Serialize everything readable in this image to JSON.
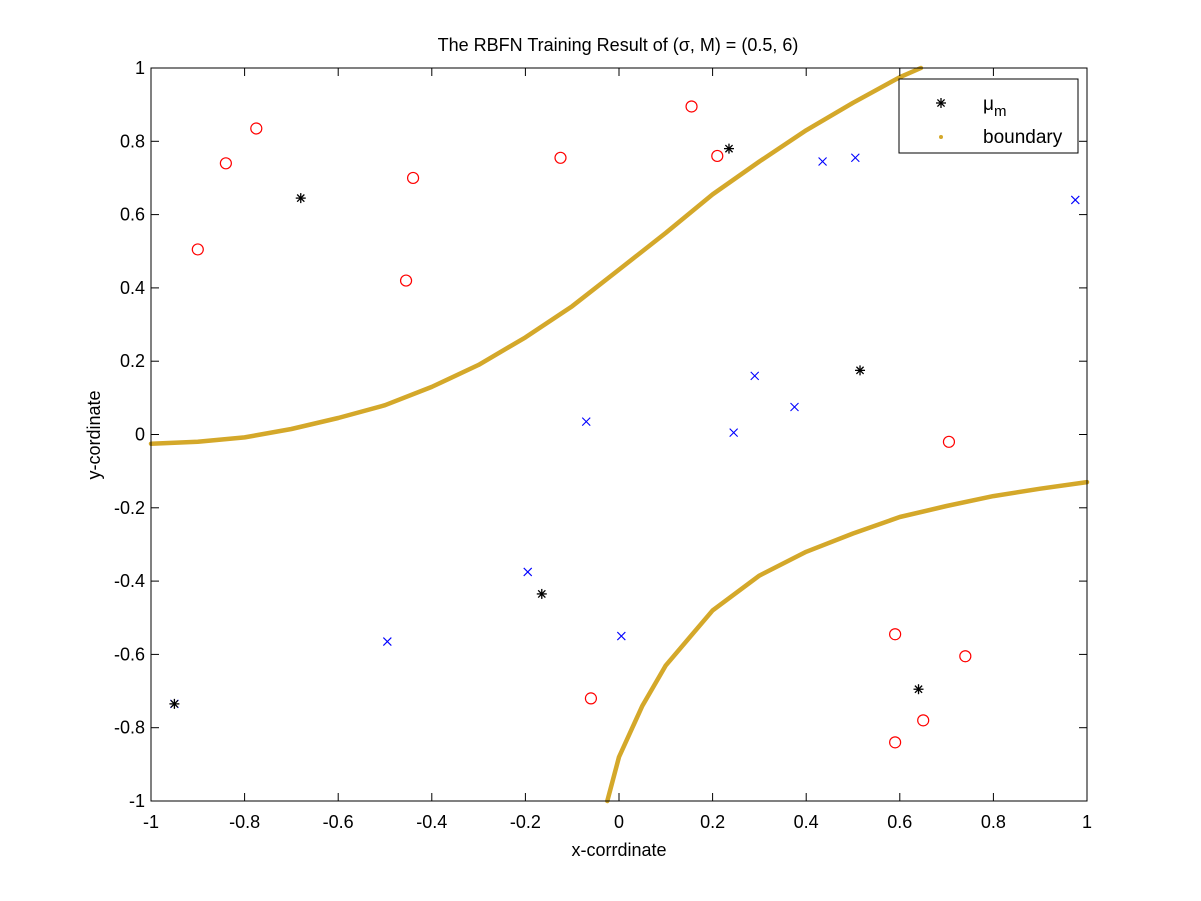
{
  "chart_data": {
    "type": "scatter",
    "title": "The RBFN Training Result of (σ, M) = (0.5, 6)",
    "xlabel": "x-corrdinate",
    "ylabel": "y-cordinate",
    "xlim": [
      -1,
      1
    ],
    "ylim": [
      -1,
      1
    ],
    "xticks": [
      -1,
      -0.8,
      -0.6,
      -0.4,
      -0.2,
      0,
      0.2,
      0.4,
      0.6,
      0.8,
      1
    ],
    "yticks": [
      -1,
      -0.8,
      -0.6,
      -0.4,
      -0.2,
      0,
      0.2,
      0.4,
      0.6,
      0.8,
      1
    ],
    "xtick_labels": [
      "-1",
      "-0.8",
      "-0.6",
      "-0.4",
      "-0.2",
      "0",
      "0.2",
      "0.4",
      "0.6",
      "0.8",
      "1"
    ],
    "ytick_labels": [
      "-1",
      "-0.8",
      "-0.6",
      "-0.4",
      "-0.2",
      "0",
      "0.2",
      "0.4",
      "0.6",
      "0.8",
      "1"
    ],
    "grid": false,
    "legend_position": "top-right",
    "series": [
      {
        "marker": "circle",
        "color": "#ff0000",
        "points": [
          [
            -0.84,
            0.74
          ],
          [
            -0.775,
            0.835
          ],
          [
            -0.9,
            0.505
          ],
          [
            -0.44,
            0.7
          ],
          [
            -0.455,
            0.42
          ],
          [
            -0.125,
            0.755
          ],
          [
            0.155,
            0.895
          ],
          [
            0.21,
            0.76
          ],
          [
            0.705,
            -0.02
          ],
          [
            0.59,
            -0.545
          ],
          [
            0.74,
            -0.605
          ],
          [
            0.65,
            -0.78
          ],
          [
            0.59,
            -0.84
          ],
          [
            -0.06,
            -0.72
          ]
        ]
      },
      {
        "marker": "x",
        "color": "#0000ff",
        "points": [
          [
            0.435,
            0.745
          ],
          [
            0.505,
            0.755
          ],
          [
            0.975,
            0.64
          ],
          [
            0.29,
            0.16
          ],
          [
            0.375,
            0.075
          ],
          [
            0.245,
            0.005
          ],
          [
            -0.07,
            0.035
          ],
          [
            -0.195,
            -0.375
          ],
          [
            -0.495,
            -0.565
          ],
          [
            0.005,
            -0.55
          ],
          [
            -0.95,
            -0.735
          ]
        ]
      },
      {
        "name": "μm",
        "marker": "asterisk",
        "color": "#000000",
        "points": [
          [
            -0.68,
            0.645
          ],
          [
            0.235,
            0.78
          ],
          [
            0.515,
            0.175
          ],
          [
            -0.165,
            -0.435
          ],
          [
            0.64,
            -0.695
          ],
          [
            -0.95,
            -0.735
          ]
        ]
      },
      {
        "name": "boundary",
        "marker": "dot-curve",
        "color": "#d4a82a",
        "segments": [
          [
            [
              -1,
              -0.025
            ],
            [
              -0.9,
              -0.02
            ],
            [
              -0.8,
              -0.008
            ],
            [
              -0.7,
              0.015
            ],
            [
              -0.6,
              0.045
            ],
            [
              -0.5,
              0.08
            ],
            [
              -0.4,
              0.13
            ],
            [
              -0.3,
              0.19
            ],
            [
              -0.2,
              0.265
            ],
            [
              -0.1,
              0.35
            ],
            [
              0.0,
              0.45
            ],
            [
              0.1,
              0.55
            ],
            [
              0.2,
              0.655
            ],
            [
              0.3,
              0.745
            ],
            [
              0.4,
              0.83
            ],
            [
              0.5,
              0.905
            ],
            [
              0.6,
              0.975
            ],
            [
              0.645,
              1.0
            ]
          ],
          [
            [
              -0.025,
              -1.0
            ],
            [
              0.0,
              -0.88
            ],
            [
              0.05,
              -0.74
            ],
            [
              0.1,
              -0.63
            ],
            [
              0.2,
              -0.48
            ],
            [
              0.3,
              -0.385
            ],
            [
              0.4,
              -0.32
            ],
            [
              0.5,
              -0.27
            ],
            [
              0.6,
              -0.225
            ],
            [
              0.7,
              -0.195
            ],
            [
              0.8,
              -0.168
            ],
            [
              0.9,
              -0.148
            ],
            [
              1.0,
              -0.13
            ]
          ]
        ]
      }
    ],
    "legend": [
      {
        "label": "μ",
        "subscript": "m",
        "marker": "asterisk",
        "color": "#000000"
      },
      {
        "label": "boundary",
        "marker": "dot-curve",
        "color": "#d4a82a"
      }
    ]
  }
}
